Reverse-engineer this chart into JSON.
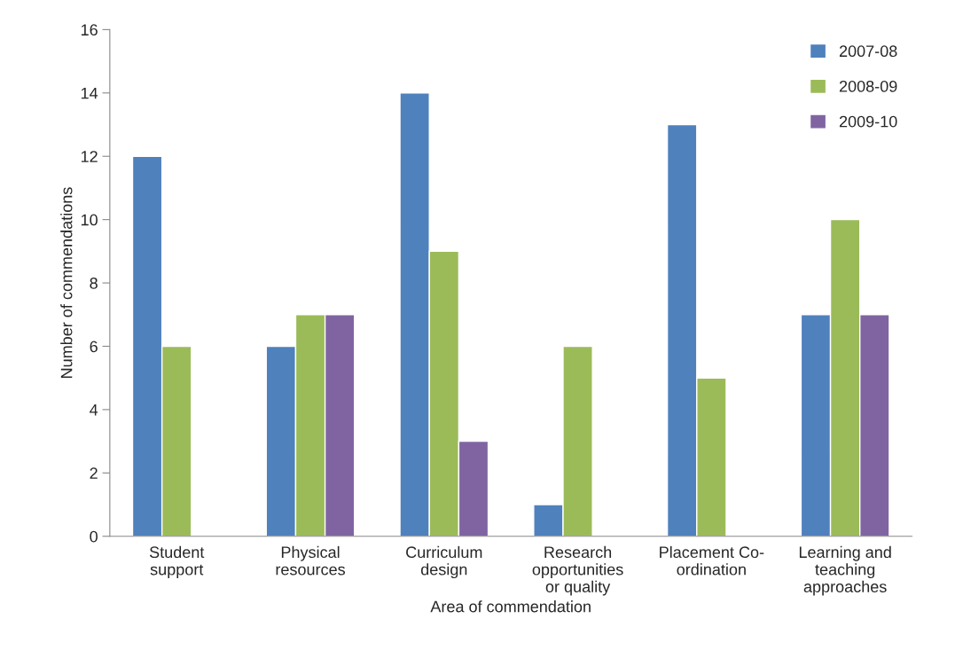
{
  "chart_data": {
    "type": "bar",
    "xlabel": "Area of commendation",
    "ylabel": "Number of commendations",
    "categories": [
      "Student\nsupport",
      "Physical\nresources",
      "Curriculum\ndesign",
      "Research\nopportunities\nor quality",
      "Placement Co-\nordination",
      "Learning and\nteaching\napproaches"
    ],
    "series": [
      {
        "name": "2007-08",
        "color": "#4f81bd",
        "values": [
          12,
          6,
          14,
          1,
          13,
          7
        ]
      },
      {
        "name": "2008-09",
        "color": "#9bbb59",
        "values": [
          6,
          7,
          9,
          6,
          5,
          10
        ]
      },
      {
        "name": "2009-10",
        "color": "#8064a2",
        "values": [
          null,
          7,
          3,
          null,
          null,
          7
        ]
      }
    ],
    "ylim": [
      0,
      16
    ],
    "yticks": [
      0,
      2,
      4,
      6,
      8,
      10,
      12,
      14,
      16
    ],
    "grid": false,
    "legend": "top right"
  }
}
